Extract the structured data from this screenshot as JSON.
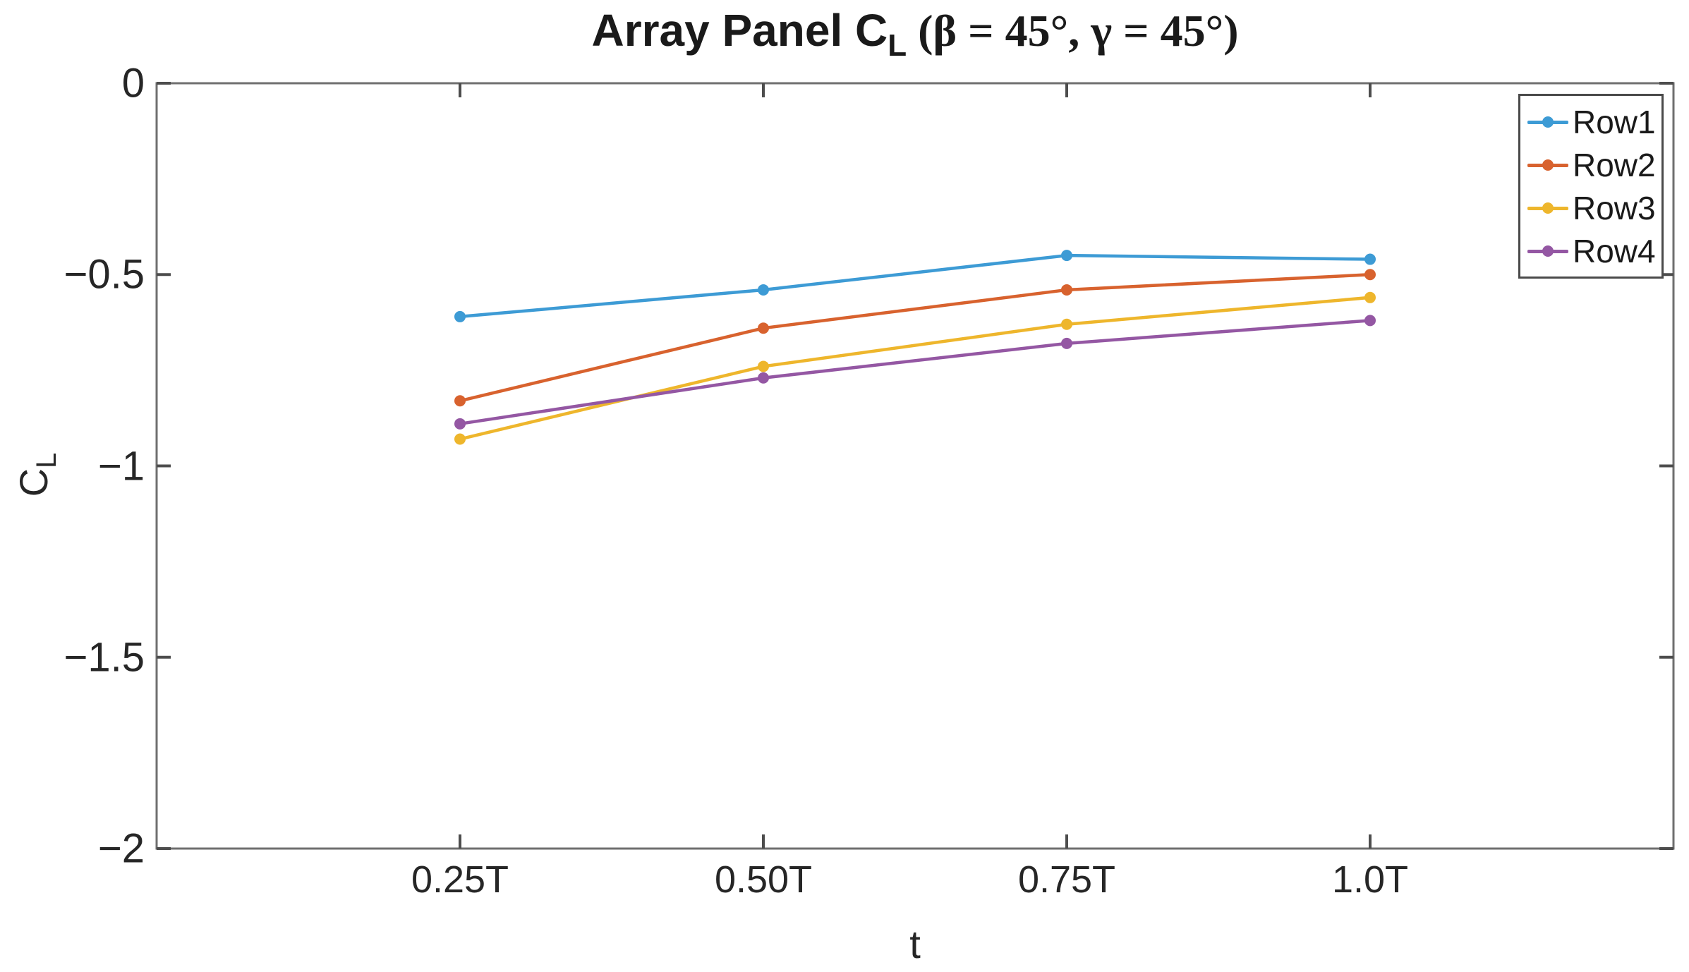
{
  "figure": {
    "title": {
      "main": "Array Panel C",
      "subscript": "L",
      "suffix": " (β = 45°, γ = 45°)"
    },
    "x_axis": {
      "label": "t",
      "tick_labels": [
        "0.25T",
        "0.50T",
        "0.75T",
        "1.0T"
      ]
    },
    "y_axis": {
      "label_main": "C",
      "label_subscript": "L",
      "tick_labels": [
        "0",
        "−0.5",
        "−1",
        "−1.5",
        "−2"
      ]
    }
  },
  "legend": {
    "items": [
      {
        "label": "Row1",
        "color": "#3D9BD5"
      },
      {
        "label": "Row2",
        "color": "#D8622E"
      },
      {
        "label": "Row3",
        "color": "#EEB62C"
      },
      {
        "label": "Row4",
        "color": "#9457A3"
      }
    ]
  },
  "chart_data": {
    "type": "line",
    "title": "Array Panel C_L (β = 45°, γ = 45°)",
    "xlabel": "t",
    "ylabel": "C_L",
    "x_categories": [
      "0.25T",
      "0.50T",
      "0.75T",
      "1.0T"
    ],
    "x_values": [
      0.25,
      0.5,
      0.75,
      1.0
    ],
    "xlim": [
      0,
      1.25
    ],
    "ylim": [
      -2,
      0
    ],
    "y_ticks": [
      0,
      -0.5,
      -1,
      -1.5,
      -2
    ],
    "grid": false,
    "box": true,
    "tick_direction": "in",
    "marker": "circle",
    "legend_position": "top-right",
    "axis_color": "#6f6f6f",
    "tick_color": "#4d4d4d",
    "series": [
      {
        "name": "Row1",
        "color": "#3D9BD5",
        "values": [
          -0.61,
          -0.54,
          -0.45,
          -0.46
        ]
      },
      {
        "name": "Row2",
        "color": "#D8622E",
        "values": [
          -0.83,
          -0.64,
          -0.54,
          -0.5
        ]
      },
      {
        "name": "Row3",
        "color": "#EEB62C",
        "values": [
          -0.93,
          -0.74,
          -0.63,
          -0.56
        ]
      },
      {
        "name": "Row4",
        "color": "#9457A3",
        "values": [
          -0.89,
          -0.77,
          -0.68,
          -0.62
        ]
      }
    ]
  }
}
